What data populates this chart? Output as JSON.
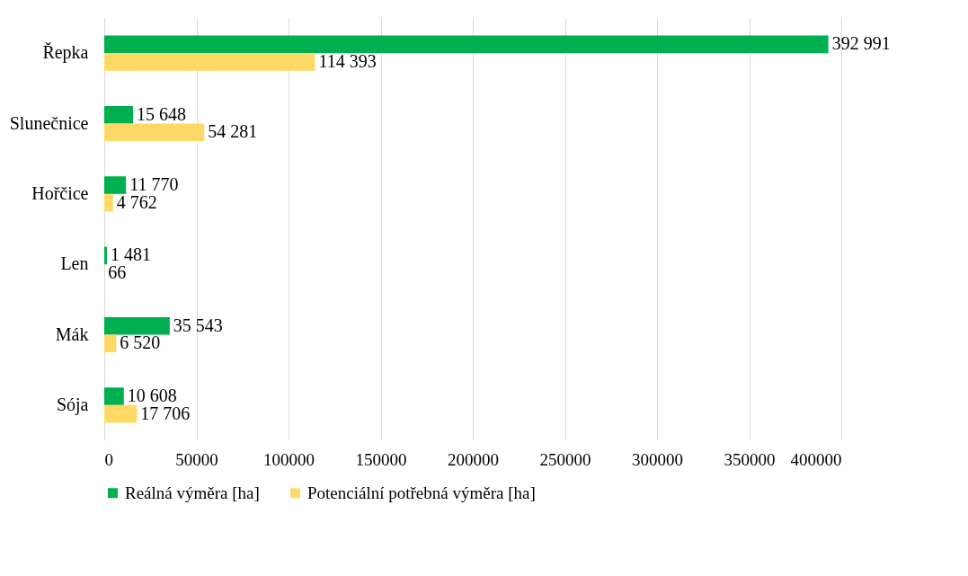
{
  "chart_data": {
    "type": "bar",
    "orientation": "horizontal",
    "categories": [
      "Řepka",
      "Slunečnice",
      "Hořčice",
      "Len",
      "Mák",
      "Sója"
    ],
    "series": [
      {
        "name": "Reálná výměra [ha]",
        "color": "#00b050",
        "values": [
          392991,
          15648,
          11770,
          1481,
          35543,
          10608
        ],
        "value_labels": [
          "392 991",
          "15 648",
          "11 770",
          "1 481",
          "35 543",
          "10 608"
        ]
      },
      {
        "name": "Potenciální potřebná výměra [ha]",
        "color": "#ffd966",
        "values": [
          114393,
          54281,
          4762,
          66,
          6520,
          17706
        ],
        "value_labels": [
          "114 393",
          "54 281",
          "4 762",
          "66",
          "6 520",
          "17 706"
        ]
      }
    ],
    "xlim": [
      0,
      400000
    ],
    "xticks": [
      0,
      50000,
      100000,
      150000,
      200000,
      250000,
      300000,
      350000,
      400000
    ],
    "grid": "x",
    "legend": "bottom"
  }
}
